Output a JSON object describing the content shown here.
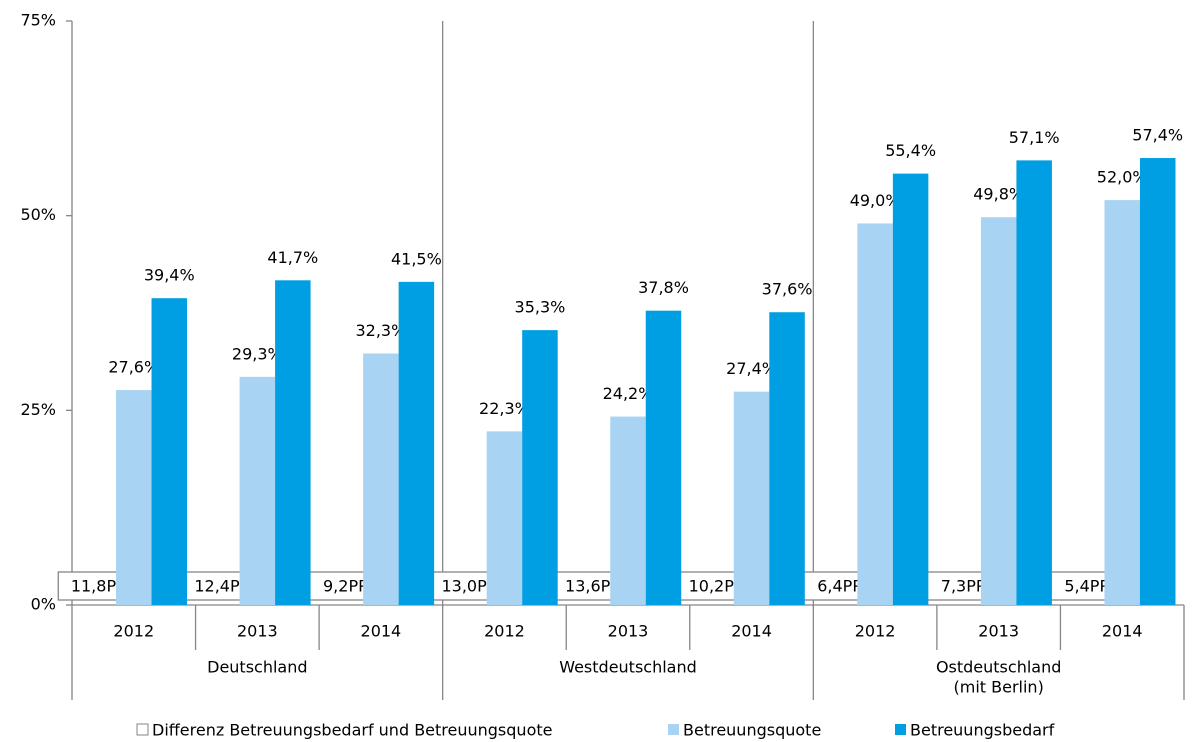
{
  "chart_data": {
    "type": "bar",
    "categories": [
      "2012",
      "2013",
      "2014",
      "2012",
      "2013",
      "2014",
      "2012",
      "2013",
      "2014"
    ],
    "groups": [
      [
        "Deutschland"
      ],
      [
        "Westdeutschland"
      ],
      [
        "Ostdeutschland",
        "(mit Berlin)"
      ]
    ],
    "series": [
      {
        "name": "Differenz Betreuungsbedarf und Betreuungsquote",
        "color": "#ffffff",
        "values": [
          11.8,
          12.4,
          9.2,
          13.0,
          13.6,
          10.2,
          6.4,
          7.3,
          5.4
        ],
        "value_labels": [
          "11,8PP",
          "12,4PP",
          "9,2PP",
          "13,0PP",
          "13,6PP",
          "10,2PP",
          "6,4PP",
          "7,3PP",
          "5,4PP"
        ]
      },
      {
        "name": "Betreuungsquote",
        "color": "#a9d3f2",
        "values": [
          27.6,
          29.3,
          32.3,
          22.3,
          24.2,
          27.4,
          49.0,
          49.8,
          52.0
        ],
        "value_labels": [
          "27,6%",
          "29,3%",
          "32,3%",
          "22,3%",
          "24,2%",
          "27,4%",
          "49,0%",
          "49,8%",
          "52,0%"
        ]
      },
      {
        "name": "Betreuungsbedarf",
        "color": "#009fe3",
        "values": [
          39.4,
          41.7,
          41.5,
          35.3,
          37.8,
          37.6,
          55.4,
          57.1,
          57.4
        ],
        "value_labels": [
          "39,4%",
          "41,7%",
          "41,5%",
          "35,3%",
          "37,8%",
          "37,6%",
          "55,4%",
          "57,1%",
          "57,4%"
        ]
      }
    ],
    "ylim": [
      0,
      75
    ],
    "yticks": [
      {
        "value": 0,
        "label": "0%"
      },
      {
        "value": 25,
        "label": "25%"
      },
      {
        "value": 50,
        "label": "50%"
      },
      {
        "value": 75,
        "label": "75%"
      }
    ],
    "grid": false,
    "legend": "bottom"
  }
}
